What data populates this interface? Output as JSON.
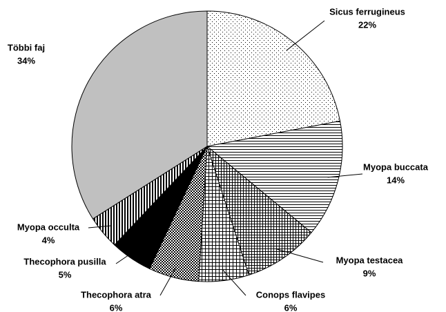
{
  "chart_data": {
    "type": "pie",
    "categories": [
      "Sicus ferrugineus",
      "Myopa buccata",
      "Myopa testacea",
      "Conops flavipes",
      "Thecophora atra",
      "Thecophora pusilla",
      "Myopa occulta",
      "Többi faj"
    ],
    "values": [
      22,
      14,
      9,
      6,
      6,
      5,
      4,
      34
    ],
    "value_labels": [
      "22%",
      "14%",
      "9%",
      "6%",
      "6%",
      "5%",
      "4%",
      "34%"
    ]
  }
}
